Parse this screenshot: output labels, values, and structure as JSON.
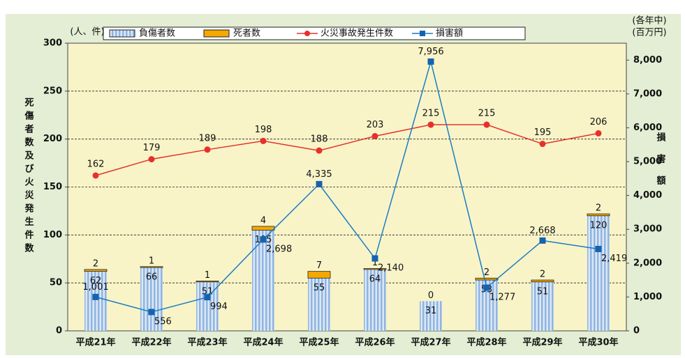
{
  "chart_data": {
    "type": "bar",
    "categories": [
      "平成21年",
      "平成22年",
      "平成23年",
      "平成24年",
      "平成25年",
      "平成26年",
      "平成27年",
      "平成28年",
      "平成29年",
      "平成30年"
    ],
    "y_unit": "(人、件)",
    "y_label": "死傷者数及び火災発生件数",
    "y2_unit_top": "(各年中)",
    "y2_unit": "(百万円)",
    "y2_label": "損害額",
    "series": [
      {
        "name": "負傷者数",
        "color": "#8fb4e0",
        "values": [
          62,
          66,
          51,
          105,
          55,
          64,
          31,
          53,
          51,
          120
        ]
      },
      {
        "name": "死者数",
        "color": "#f5a800",
        "values": [
          2,
          1,
          1,
          4,
          7,
          1,
          0,
          2,
          2,
          2
        ]
      },
      {
        "name": "火災事故発生件数",
        "color": "#e8302a",
        "type": "line",
        "values": [
          162,
          179,
          189,
          198,
          188,
          203,
          215,
          215,
          195,
          206
        ]
      },
      {
        "name": "損害額",
        "color": "#1a7cc4",
        "type": "line",
        "axis": "y2",
        "values": [
          1001,
          556,
          994,
          2698,
          4335,
          2140,
          7956,
          1277,
          2668,
          2419
        ],
        "value_labels": [
          "1,001",
          "556",
          "994",
          "2,698",
          "4,335",
          "2,140",
          "7,956",
          "1,277",
          "2,668",
          "2,419"
        ]
      }
    ],
    "ylim": [
      0,
      300
    ],
    "yticks": [
      0,
      50,
      100,
      150,
      200,
      250,
      300
    ],
    "y2lim": [
      0,
      8500
    ],
    "y2ticks": [
      0,
      {
        "value": 1000,
        "label": "1,000"
      },
      {
        "value": 2000,
        "label": "2,000"
      },
      {
        "value": 3000,
        "label": "3,000"
      },
      {
        "value": 4000,
        "label": "4,000"
      },
      {
        "value": 5000,
        "label": "5,000"
      },
      {
        "value": 6000,
        "label": "6,000"
      },
      {
        "value": 7000,
        "label": "7,000"
      },
      {
        "value": 8000,
        "label": "8,000"
      }
    ],
    "grid": true,
    "legend": "top"
  }
}
